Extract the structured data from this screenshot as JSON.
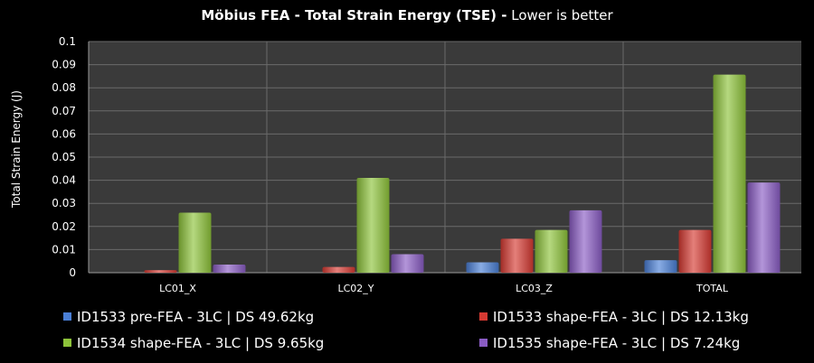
{
  "chart_data": {
    "type": "bar",
    "title_bold": "Möbius FEA - Total Strain Energy (TSE) -",
    "title_rest": " Lower is better",
    "xlabel": "",
    "ylabel": "Total Strain Energy (J)",
    "ylim": [
      0,
      0.1
    ],
    "yticks": [
      "0",
      "0.01",
      "0.02",
      "0.03",
      "0.04",
      "0.05",
      "0.06",
      "0.07",
      "0.08",
      "0.09",
      "0.1"
    ],
    "categories": [
      "LC01_X",
      "LC02_Y",
      "LC03_Z",
      "TOTAL"
    ],
    "grid": true,
    "legend_position": "bottom",
    "series": [
      {
        "name": "ID1533 pre-FEA - 3LC | DS 49.62kg",
        "color": "#4a7fd6",
        "values": [
          0.0,
          0.0,
          0.0045,
          0.0054
        ]
      },
      {
        "name": "ID1533 shape-FEA - 3LC | DS 12.13kg",
        "color": "#d63a32",
        "values": [
          0.0011,
          0.0025,
          0.0147,
          0.0185
        ]
      },
      {
        "name": "ID1534 shape-FEA - 3LC | DS 9.65kg",
        "color": "#8dc33a",
        "values": [
          0.026,
          0.041,
          0.0185,
          0.0857
        ]
      },
      {
        "name": "ID1535 shape-FEA - 3LC | DS 7.24kg",
        "color": "#8a5cc4",
        "values": [
          0.0035,
          0.008,
          0.027,
          0.039
        ]
      }
    ]
  }
}
